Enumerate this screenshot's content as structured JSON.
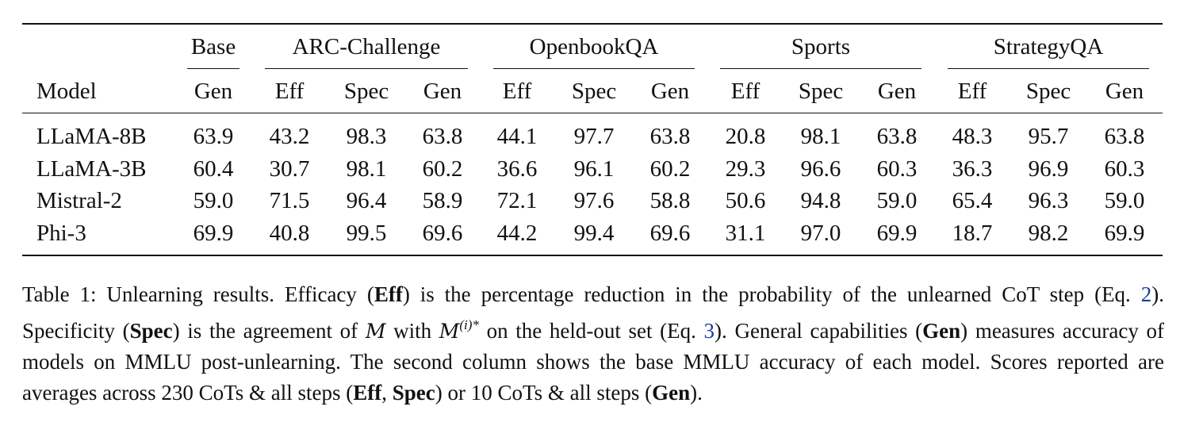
{
  "table": {
    "group_headers": [
      {
        "label": "Base"
      },
      {
        "label": "ARC-Challenge"
      },
      {
        "label": "OpenbookQA"
      },
      {
        "label": "Sports"
      },
      {
        "label": "StrategyQA"
      }
    ],
    "model_header": "Model",
    "sub_headers": [
      "Gen",
      "Eff",
      "Spec",
      "Gen",
      "Eff",
      "Spec",
      "Gen",
      "Eff",
      "Spec",
      "Gen",
      "Eff",
      "Spec",
      "Gen"
    ],
    "rows": [
      {
        "model": "LLaMA-8B",
        "values": [
          "63.9",
          "43.2",
          "98.3",
          "63.8",
          "44.1",
          "97.7",
          "63.8",
          "20.8",
          "98.1",
          "63.8",
          "48.3",
          "95.7",
          "63.8"
        ]
      },
      {
        "model": "LLaMA-3B",
        "values": [
          "60.4",
          "30.7",
          "98.1",
          "60.2",
          "36.6",
          "96.1",
          "60.2",
          "29.3",
          "96.6",
          "60.3",
          "36.3",
          "96.9",
          "60.3"
        ]
      },
      {
        "model": "Mistral-2",
        "values": [
          "59.0",
          "71.5",
          "96.4",
          "58.9",
          "72.1",
          "97.6",
          "58.8",
          "50.6",
          "94.8",
          "59.0",
          "65.4",
          "96.3",
          "59.0"
        ]
      },
      {
        "model": "Phi-3",
        "values": [
          "69.9",
          "40.8",
          "99.5",
          "69.6",
          "44.2",
          "99.4",
          "69.6",
          "31.1",
          "97.0",
          "69.9",
          "18.7",
          "98.2",
          "69.9"
        ]
      }
    ]
  },
  "caption": {
    "s1": "Table 1: Unlearning results. Efficacy (",
    "b1": "Eff",
    "s2": ") is the percentage reduction in the probability of the unlearned CoT step (Eq. ",
    "ref1": "2",
    "s3": "). Specificity (",
    "b2": "Spec",
    "s4": ") is the agreement of ",
    "m1": "M",
    "s5": " with ",
    "m2": "M",
    "m2_sup": "(i)*",
    "s6": " on the held-out set (Eq. ",
    "ref2": "3",
    "s7": "). General capabilities (",
    "b3": "Gen",
    "s8": ") measures accuracy of models on MMLU post-unlearning. The second column shows the base MMLU accuracy of each model. Scores reported are averages across 230 CoTs & all steps (",
    "b4": "Eff",
    "s9": ", ",
    "b5": "Spec",
    "s10": ") or 10 CoTs & all steps (",
    "b6": "Gen",
    "s11": ")."
  }
}
